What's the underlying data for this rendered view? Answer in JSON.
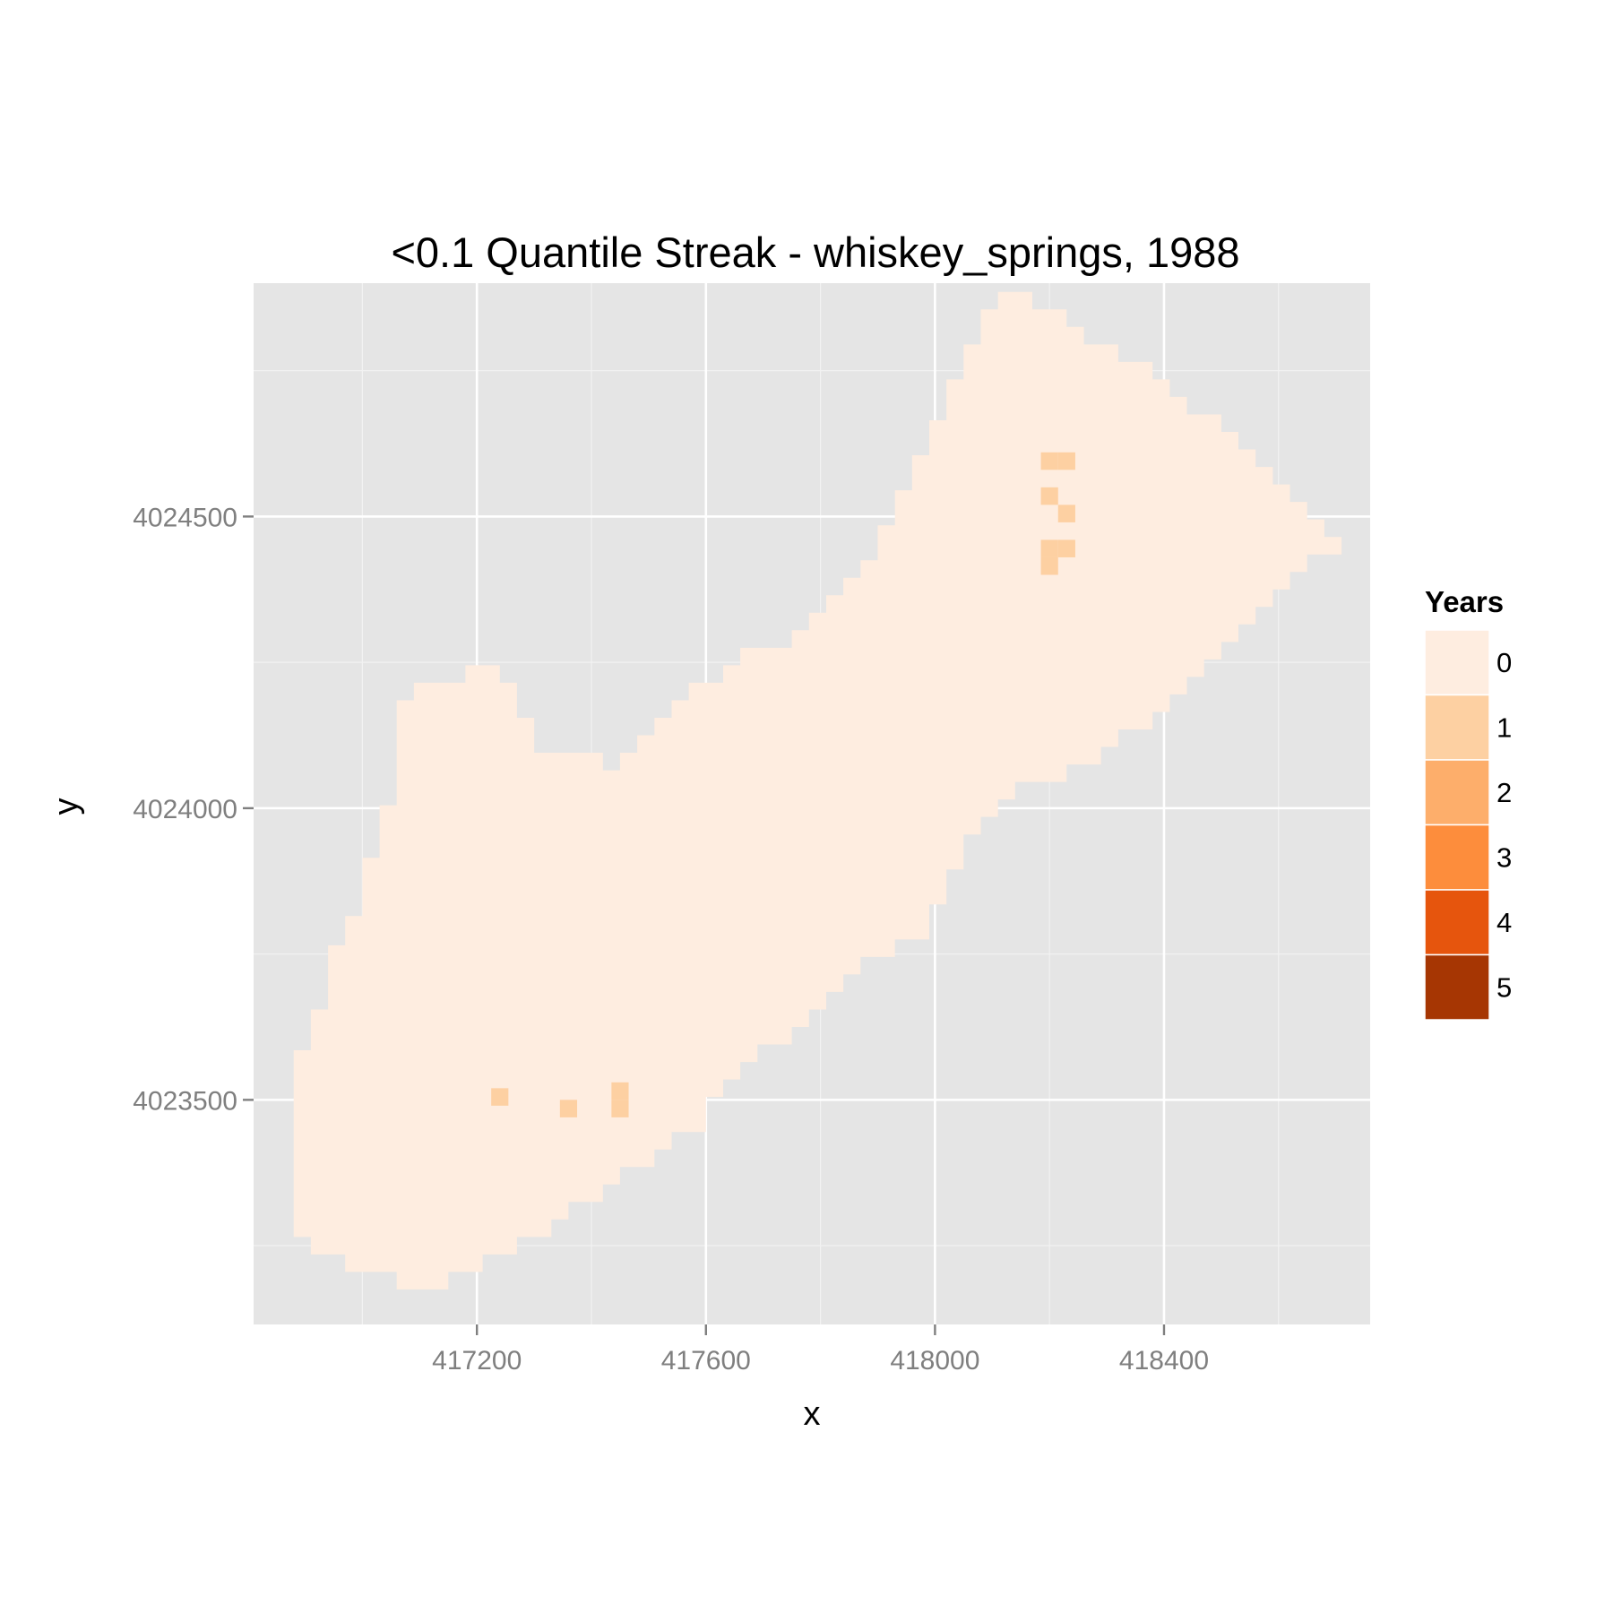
{
  "chart_data": {
    "type": "heatmap",
    "title": "<0.1 Quantile Streak - whiskey_springs, 1988",
    "xlabel": "x",
    "ylabel": "y",
    "xlim": [
      416810,
      418760
    ],
    "ylim": [
      4023115,
      4024900
    ],
    "x_ticks": [
      417200,
      417600,
      418000,
      418400
    ],
    "x_tick_labels": [
      "417200",
      "417600",
      "418000",
      "418400"
    ],
    "x_minor_ticks": [
      417000,
      417400,
      417800,
      418200,
      418600
    ],
    "y_ticks": [
      4023500,
      4024000,
      4024500
    ],
    "y_tick_labels": [
      "4023500",
      "4024000",
      "4024500"
    ],
    "y_minor_ticks": [
      4023250,
      4023750,
      4024250,
      4024750
    ],
    "grid": true,
    "cell_size": 30,
    "legend": {
      "title": "Years",
      "position": "right",
      "levels": [
        "0",
        "1",
        "2",
        "3",
        "4",
        "5"
      ],
      "colors": [
        "#feede0",
        "#fdd0a2",
        "#fdae6b",
        "#fd8d3c",
        "#e6550d",
        "#a63603"
      ]
    },
    "region_outline": [
      [
        416910,
        4023235
      ],
      [
        416970,
        4023235
      ],
      [
        416970,
        4023205
      ],
      [
        417060,
        4023205
      ],
      [
        417060,
        4023175
      ],
      [
        417150,
        4023175
      ],
      [
        417150,
        4023205
      ],
      [
        417210,
        4023205
      ],
      [
        417210,
        4023235
      ],
      [
        417270,
        4023235
      ],
      [
        417270,
        4023265
      ],
      [
        417330,
        4023265
      ],
      [
        417330,
        4023295
      ],
      [
        417360,
        4023295
      ],
      [
        417360,
        4023325
      ],
      [
        417420,
        4023325
      ],
      [
        417420,
        4023355
      ],
      [
        417450,
        4023355
      ],
      [
        417450,
        4023385
      ],
      [
        417510,
        4023385
      ],
      [
        417510,
        4023415
      ],
      [
        417540,
        4023415
      ],
      [
        417540,
        4023445
      ],
      [
        417600,
        4023445
      ],
      [
        417600,
        4023505
      ],
      [
        417630,
        4023505
      ],
      [
        417630,
        4023535
      ],
      [
        417660,
        4023535
      ],
      [
        417660,
        4023565
      ],
      [
        417690,
        4023565
      ],
      [
        417690,
        4023595
      ],
      [
        417750,
        4023595
      ],
      [
        417750,
        4023625
      ],
      [
        417780,
        4023625
      ],
      [
        417780,
        4023655
      ],
      [
        417810,
        4023655
      ],
      [
        417810,
        4023685
      ],
      [
        417840,
        4023685
      ],
      [
        417840,
        4023715
      ],
      [
        417870,
        4023715
      ],
      [
        417870,
        4023745
      ],
      [
        417930,
        4023745
      ],
      [
        417930,
        4023775
      ],
      [
        417990,
        4023775
      ],
      [
        417990,
        4023835
      ],
      [
        418020,
        4023835
      ],
      [
        418020,
        4023895
      ],
      [
        418050,
        4023895
      ],
      [
        418050,
        4023955
      ],
      [
        418080,
        4023955
      ],
      [
        418080,
        4023985
      ],
      [
        418110,
        4023985
      ],
      [
        418110,
        4024015
      ],
      [
        418140,
        4024015
      ],
      [
        418140,
        4024045
      ],
      [
        418230,
        4024045
      ],
      [
        418230,
        4024075
      ],
      [
        418290,
        4024075
      ],
      [
        418290,
        4024105
      ],
      [
        418320,
        4024105
      ],
      [
        418320,
        4024135
      ],
      [
        418380,
        4024135
      ],
      [
        418380,
        4024165
      ],
      [
        418410,
        4024165
      ],
      [
        418410,
        4024195
      ],
      [
        418440,
        4024195
      ],
      [
        418440,
        4024225
      ],
      [
        418470,
        4024225
      ],
      [
        418470,
        4024255
      ],
      [
        418500,
        4024255
      ],
      [
        418500,
        4024285
      ],
      [
        418530,
        4024285
      ],
      [
        418530,
        4024315
      ],
      [
        418560,
        4024315
      ],
      [
        418560,
        4024345
      ],
      [
        418590,
        4024345
      ],
      [
        418590,
        4024375
      ],
      [
        418620,
        4024375
      ],
      [
        418620,
        4024405
      ],
      [
        418650,
        4024405
      ],
      [
        418650,
        4024435
      ],
      [
        418710,
        4024435
      ],
      [
        418710,
        4024465
      ],
      [
        418680,
        4024465
      ],
      [
        418680,
        4024495
      ],
      [
        418650,
        4024495
      ],
      [
        418650,
        4024525
      ],
      [
        418620,
        4024525
      ],
      [
        418620,
        4024555
      ],
      [
        418590,
        4024555
      ],
      [
        418590,
        4024585
      ],
      [
        418560,
        4024585
      ],
      [
        418560,
        4024615
      ],
      [
        418530,
        4024615
      ],
      [
        418530,
        4024645
      ],
      [
        418500,
        4024645
      ],
      [
        418500,
        4024675
      ],
      [
        418440,
        4024675
      ],
      [
        418440,
        4024705
      ],
      [
        418410,
        4024705
      ],
      [
        418410,
        4024735
      ],
      [
        418380,
        4024735
      ],
      [
        418380,
        4024765
      ],
      [
        418320,
        4024765
      ],
      [
        418320,
        4024795
      ],
      [
        418260,
        4024795
      ],
      [
        418260,
        4024825
      ],
      [
        418230,
        4024825
      ],
      [
        418230,
        4024855
      ],
      [
        418170,
        4024855
      ],
      [
        418170,
        4024885
      ],
      [
        418110,
        4024885
      ],
      [
        418110,
        4024855
      ],
      [
        418080,
        4024855
      ],
      [
        418080,
        4024795
      ],
      [
        418050,
        4024795
      ],
      [
        418050,
        4024735
      ],
      [
        418020,
        4024735
      ],
      [
        418020,
        4024665
      ],
      [
        417990,
        4024665
      ],
      [
        417990,
        4024605
      ],
      [
        417960,
        4024605
      ],
      [
        417960,
        4024545
      ],
      [
        417930,
        4024545
      ],
      [
        417930,
        4024485
      ],
      [
        417900,
        4024485
      ],
      [
        417900,
        4024425
      ],
      [
        417870,
        4024425
      ],
      [
        417870,
        4024395
      ],
      [
        417840,
        4024395
      ],
      [
        417840,
        4024365
      ],
      [
        417810,
        4024365
      ],
      [
        417810,
        4024335
      ],
      [
        417780,
        4024335
      ],
      [
        417780,
        4024305
      ],
      [
        417750,
        4024305
      ],
      [
        417750,
        4024275
      ],
      [
        417660,
        4024275
      ],
      [
        417660,
        4024245
      ],
      [
        417630,
        4024245
      ],
      [
        417630,
        4024215
      ],
      [
        417570,
        4024215
      ],
      [
        417570,
        4024185
      ],
      [
        417540,
        4024185
      ],
      [
        417540,
        4024155
      ],
      [
        417510,
        4024155
      ],
      [
        417510,
        4024125
      ],
      [
        417480,
        4024125
      ],
      [
        417480,
        4024095
      ],
      [
        417450,
        4024095
      ],
      [
        417450,
        4024065
      ],
      [
        417420,
        4024065
      ],
      [
        417420,
        4024095
      ],
      [
        417300,
        4024095
      ],
      [
        417300,
        4024155
      ],
      [
        417270,
        4024155
      ],
      [
        417270,
        4024215
      ],
      [
        417240,
        4024215
      ],
      [
        417240,
        4024245
      ],
      [
        417180,
        4024245
      ],
      [
        417180,
        4024215
      ],
      [
        417090,
        4024215
      ],
      [
        417090,
        4024185
      ],
      [
        417060,
        4024185
      ],
      [
        417060,
        4024005
      ],
      [
        417030,
        4024005
      ],
      [
        417030,
        4023915
      ],
      [
        417000,
        4023915
      ],
      [
        417000,
        4023815
      ],
      [
        416970,
        4023815
      ],
      [
        416970,
        4023765
      ],
      [
        416940,
        4023765
      ],
      [
        416940,
        4023655
      ],
      [
        416910,
        4023655
      ],
      [
        416910,
        4023585
      ],
      [
        416880,
        4023585
      ],
      [
        416880,
        4023265
      ],
      [
        416910,
        4023265
      ]
    ],
    "cells_value_1": [
      [
        417240,
        4023505
      ],
      [
        417360,
        4023485
      ],
      [
        417450,
        4023485
      ],
      [
        417450,
        4023515
      ],
      [
        418200,
        4024595
      ],
      [
        418230,
        4024595
      ],
      [
        418200,
        4024535
      ],
      [
        418230,
        4024505
      ],
      [
        418200,
        4024445
      ],
      [
        418230,
        4024445
      ],
      [
        418200,
        4024415
      ]
    ]
  }
}
